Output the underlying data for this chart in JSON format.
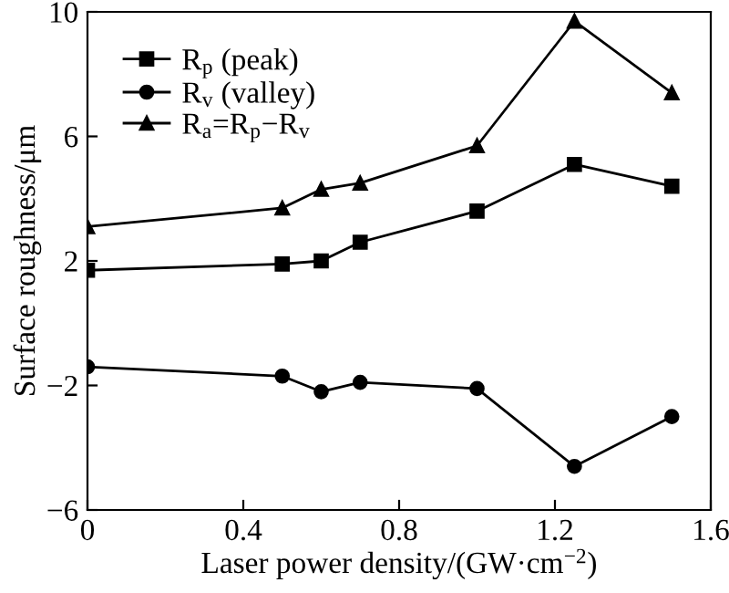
{
  "chart_data": {
    "type": "line",
    "xlabel": "Laser power density/(GW·cm$^{−2}$)",
    "ylabel": "Surface roughness/μm",
    "xlim": [
      0,
      1.6
    ],
    "xticks": [
      0,
      0.4,
      0.8,
      1.2,
      1.6
    ],
    "ylim": [
      -6,
      10
    ],
    "yticks": [
      -2,
      2,
      6,
      10,
      {
        "value": -6,
        "label": "−6"
      }
    ],
    "x": [
      0,
      0.5,
      0.6,
      0.7,
      1.0,
      1.25,
      1.5
    ],
    "series": [
      {
        "name": "R$_{p}$ (peak)",
        "color": "#000000",
        "marker": "square",
        "values": [
          1.7,
          1.9,
          2.0,
          2.6,
          3.6,
          5.1,
          4.4
        ]
      },
      {
        "name": "R$_{v}$ (valley)",
        "color": "#000000",
        "marker": "circle",
        "values": [
          -1.4,
          -1.7,
          -2.2,
          -1.9,
          -2.1,
          -4.6,
          -3.0
        ]
      },
      {
        "name": "R$_{a}$=R$_{p}$−R$_{v}$",
        "color": "#000000",
        "marker": "triangle",
        "values": [
          3.1,
          3.7,
          4.3,
          4.5,
          5.7,
          9.7,
          7.4
        ]
      }
    ],
    "legend": "top left",
    "grid": false,
    "line_style": "solid"
  }
}
